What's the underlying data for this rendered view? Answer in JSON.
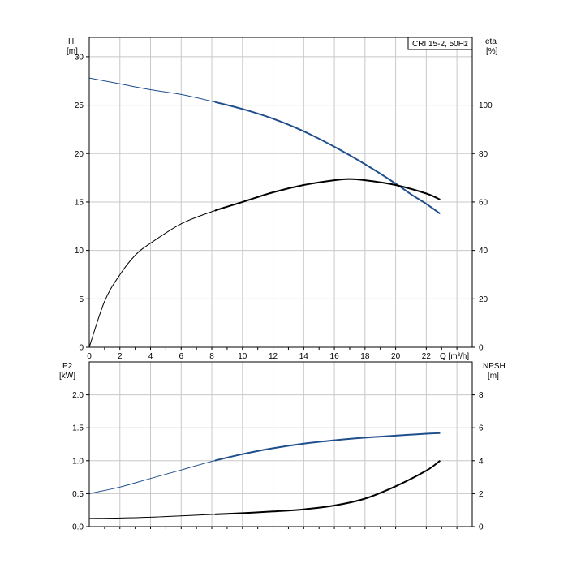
{
  "chart_data": [
    {
      "type": "line",
      "title": "CRI 15-2, 50Hz",
      "xlabel": "Q [m³/h]",
      "xlim": [
        0,
        25
      ],
      "x_ticks": [
        "0",
        "2",
        "4",
        "6",
        "8",
        "10",
        "12",
        "14",
        "16",
        "18",
        "20",
        "22"
      ],
      "left_axis": {
        "label": "H",
        "unit": "[m]",
        "ylim": [
          0,
          32
        ],
        "ticks": [
          "0",
          "5",
          "10",
          "15",
          "20",
          "25",
          "30"
        ]
      },
      "right_axis": {
        "label": "eta",
        "unit": "[%]",
        "ylim": [
          0,
          128
        ],
        "ticks": [
          "0",
          "20",
          "40",
          "60",
          "80",
          "100"
        ]
      },
      "grid": true,
      "series": [
        {
          "axis": "left",
          "color": "#1f4e8c",
          "x": [
            0,
            2,
            4,
            6,
            8,
            10,
            12,
            14,
            16,
            18,
            20,
            21,
            22,
            22.9
          ],
          "y": [
            27.8,
            27.2,
            26.6,
            26.1,
            25.4,
            24.6,
            23.6,
            22.3,
            20.7,
            18.9,
            16.9,
            15.8,
            14.8,
            13.8
          ]
        },
        {
          "axis": "right",
          "color": "#000000",
          "x": [
            0,
            1,
            2,
            3,
            4,
            6,
            8,
            10,
            12,
            14,
            16,
            17,
            18,
            20,
            22,
            22.9
          ],
          "y": [
            0,
            19,
            30,
            38,
            43,
            51,
            56,
            60,
            64,
            67,
            69,
            69.5,
            69,
            67,
            63.5,
            61
          ]
        }
      ]
    },
    {
      "type": "line",
      "x_ticks": [
        "0",
        "2",
        "4",
        "6",
        "8",
        "10",
        "12",
        "14",
        "16",
        "18",
        "20",
        "22"
      ],
      "xlim": [
        0,
        25
      ],
      "left_axis": {
        "label": "P2",
        "unit": "[kW]",
        "ylim": [
          0,
          2.5
        ],
        "ticks": [
          "0.0",
          "0.5",
          "1.0",
          "1.5",
          "2.0"
        ]
      },
      "right_axis": {
        "label": "NPSH",
        "unit": "[m]",
        "ylim": [
          0,
          10
        ],
        "ticks": [
          "0",
          "2",
          "4",
          "6",
          "8"
        ]
      },
      "grid": true,
      "series": [
        {
          "axis": "left",
          "color": "#1f4e8c",
          "x": [
            0,
            2,
            4,
            6,
            8,
            10,
            12,
            14,
            16,
            18,
            20,
            22,
            22.9
          ],
          "y": [
            0.5,
            0.6,
            0.73,
            0.86,
            0.99,
            1.1,
            1.19,
            1.26,
            1.31,
            1.35,
            1.38,
            1.41,
            1.42
          ]
        },
        {
          "axis": "right",
          "color": "#000000",
          "x": [
            0,
            2,
            4,
            6,
            8,
            10,
            12,
            14,
            16,
            18,
            20,
            22,
            22.9
          ],
          "y": [
            0.5,
            0.52,
            0.57,
            0.65,
            0.74,
            0.82,
            0.92,
            1.05,
            1.28,
            1.7,
            2.45,
            3.4,
            4.0
          ]
        }
      ]
    }
  ]
}
